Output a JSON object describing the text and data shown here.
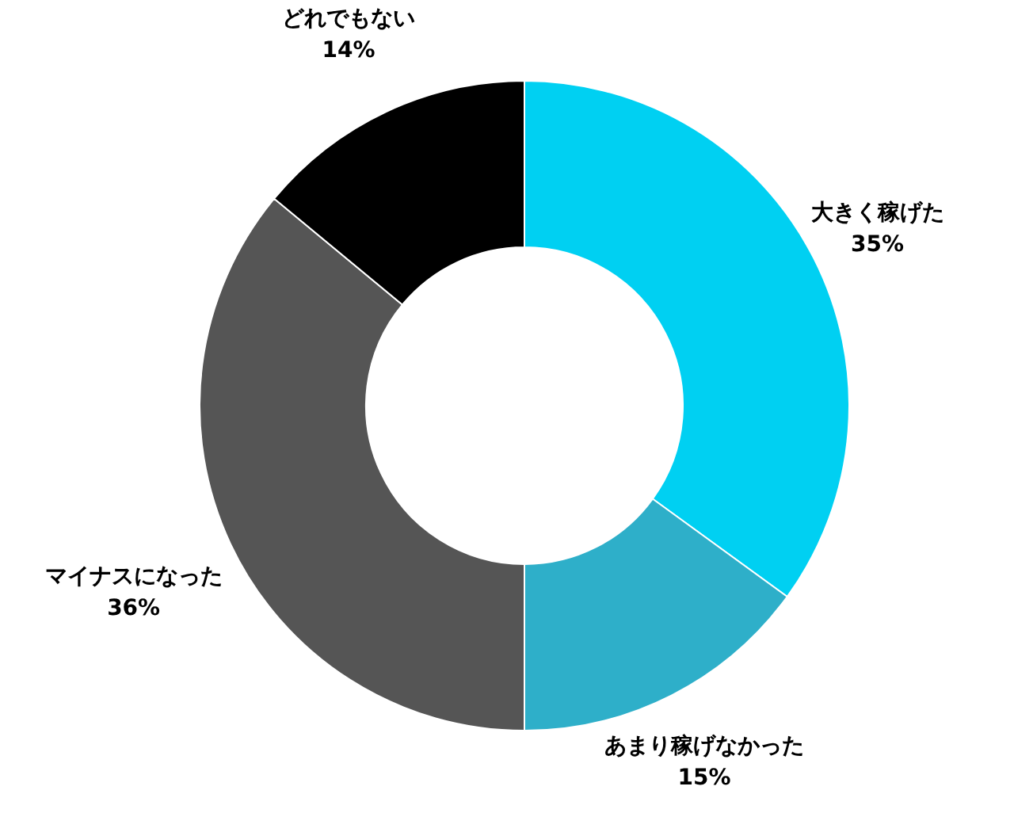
{
  "chart_data": {
    "type": "donut",
    "categories": [
      "大きく稼げた",
      "あまり稼げなかった",
      "マイナスになった",
      "どれでもない"
    ],
    "values": [
      35,
      15,
      36,
      14
    ],
    "value_labels": [
      "35%",
      "15%",
      "36%",
      "14%"
    ],
    "colors": [
      "#00d0f2",
      "#2eafc9",
      "#555555",
      "#000000"
    ]
  }
}
